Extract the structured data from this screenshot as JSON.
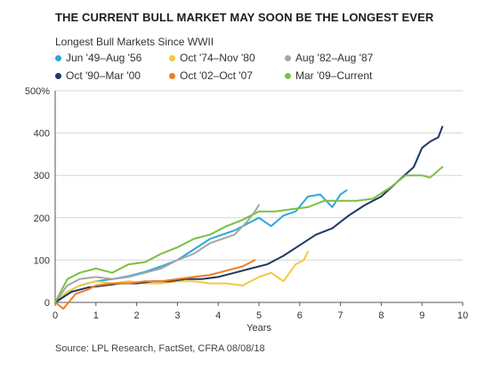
{
  "colors": {
    "background": "#ffffff",
    "gridline": "#d6d6d6",
    "axis": "#555555",
    "series_Jun49": "#2ea8dc",
    "series_Oct74": "#f5c842",
    "series_Aug82": "#a6a6a6",
    "series_Oct90": "#1f3864",
    "series_Oct02": "#ef7d22",
    "series_Mar09": "#7cbf44"
  },
  "chart_data": {
    "type": "line",
    "title": "THE CURRENT BULL MARKET MAY SOON BE THE LONGEST EVER",
    "subtitle": "Longest Bull Markets Since WWII",
    "xlabel": "Years",
    "ylabel": "",
    "xlim": [
      0,
      10
    ],
    "ylim": [
      0,
      500
    ],
    "x_ticks": [
      "0",
      "1",
      "2",
      "3",
      "4",
      "5",
      "6",
      "7",
      "8",
      "9",
      "10"
    ],
    "y_ticks": [
      "0",
      "100",
      "200",
      "300",
      "400",
      "500%"
    ],
    "grid": "horizontal",
    "legend_position": "top-left",
    "source": "Source: LPL Research, FactSet, CFRA   08/08/18",
    "series": [
      {
        "name": "Jun '49–Aug '56",
        "color": "#2ea8dc",
        "x": [
          0,
          0.3,
          0.6,
          1.0,
          1.4,
          1.8,
          2.2,
          2.6,
          3.0,
          3.4,
          3.8,
          4.1,
          4.4,
          4.7,
          5.0,
          5.3,
          5.6,
          5.9,
          6.2,
          6.5,
          6.8,
          7.0,
          7.15
        ],
        "y": [
          0,
          25,
          40,
          50,
          55,
          62,
          72,
          85,
          100,
          125,
          150,
          160,
          170,
          185,
          200,
          180,
          205,
          215,
          250,
          255,
          225,
          255,
          265
        ]
      },
      {
        "name": "Oct '74–Nov '80",
        "color": "#f5c842",
        "x": [
          0,
          0.3,
          0.6,
          1.0,
          1.4,
          1.8,
          2.2,
          2.6,
          3.0,
          3.4,
          3.8,
          4.2,
          4.6,
          5.0,
          5.3,
          5.6,
          5.9,
          6.1,
          6.2
        ],
        "y": [
          0,
          25,
          40,
          50,
          45,
          50,
          45,
          45,
          50,
          50,
          45,
          45,
          40,
          60,
          70,
          50,
          90,
          100,
          120
        ]
      },
      {
        "name": "Aug '82–Aug '87",
        "color": "#a6a6a6",
        "x": [
          0,
          0.3,
          0.6,
          1.0,
          1.4,
          1.8,
          2.2,
          2.6,
          3.0,
          3.4,
          3.8,
          4.1,
          4.4,
          4.7,
          4.9,
          5.0
        ],
        "y": [
          0,
          40,
          55,
          60,
          55,
          60,
          70,
          80,
          100,
          115,
          140,
          150,
          160,
          190,
          215,
          230
        ]
      },
      {
        "name": "Oct '90–Mar '00",
        "color": "#1f3864",
        "x": [
          0,
          0.4,
          0.8,
          1.2,
          1.6,
          2.0,
          2.4,
          2.8,
          3.2,
          3.6,
          4.0,
          4.4,
          4.8,
          5.2,
          5.6,
          6.0,
          6.4,
          6.8,
          7.2,
          7.6,
          8.0,
          8.4,
          8.8,
          9.0,
          9.2,
          9.4,
          9.5
        ],
        "y": [
          0,
          25,
          35,
          40,
          45,
          45,
          50,
          50,
          55,
          55,
          60,
          70,
          80,
          90,
          110,
          135,
          160,
          175,
          205,
          230,
          250,
          285,
          320,
          365,
          380,
          390,
          415
        ]
      },
      {
        "name": "Oct '02–Oct '07",
        "color": "#ef7d22",
        "x": [
          0,
          0.2,
          0.5,
          0.8,
          1.0,
          1.4,
          1.8,
          2.2,
          2.6,
          3.0,
          3.4,
          3.8,
          4.2,
          4.6,
          4.9
        ],
        "y": [
          0,
          -15,
          20,
          30,
          40,
          45,
          45,
          50,
          50,
          55,
          60,
          65,
          75,
          85,
          100
        ]
      },
      {
        "name": "Mar '09–Current",
        "color": "#7cbf44",
        "x": [
          0,
          0.3,
          0.6,
          1.0,
          1.4,
          1.8,
          2.2,
          2.6,
          3.0,
          3.4,
          3.8,
          4.2,
          4.6,
          5.0,
          5.4,
          5.8,
          6.2,
          6.6,
          7.0,
          7.4,
          7.8,
          8.2,
          8.6,
          9.0,
          9.2,
          9.5
        ],
        "y": [
          0,
          55,
          70,
          80,
          70,
          90,
          95,
          115,
          130,
          150,
          160,
          180,
          195,
          215,
          215,
          220,
          225,
          240,
          240,
          240,
          245,
          270,
          300,
          300,
          295,
          320
        ]
      }
    ]
  }
}
